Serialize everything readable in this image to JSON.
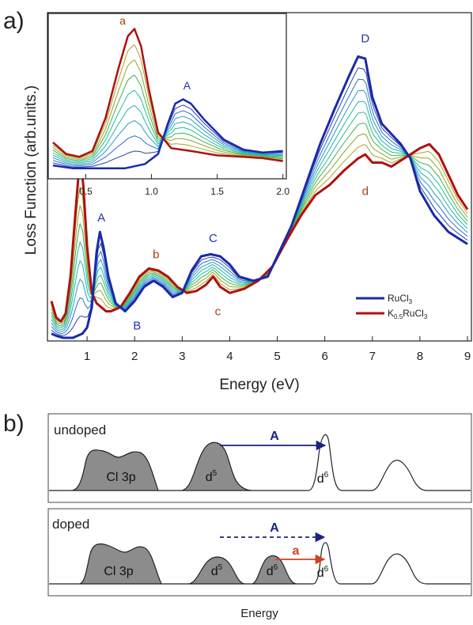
{
  "panel_labels": {
    "a": "a)",
    "b": "b)"
  },
  "colors": {
    "ru": "#1a2aa8",
    "k": "#b01010",
    "inter": [
      "#2c3fb0",
      "#2f6fc4",
      "#2a9ac8",
      "#1fb4ae",
      "#25bf86",
      "#3fae54",
      "#8fa628",
      "#a9a228"
    ],
    "label_ru": "#2233aa",
    "label_k": "#a04010",
    "arrow_blue": "#1a237e",
    "arrow_red": "#d04020",
    "fill_gray": "#8c8c8c"
  },
  "chart_data": [
    {
      "type": "line",
      "xlabel": "Energy  (eV)",
      "ylabel": "Loss Function (arb.units.)",
      "xlim": [
        0.2,
        9.05
      ],
      "xticks": [
        "1",
        "2",
        "3",
        "4",
        "5",
        "6",
        "7",
        "8",
        "9"
      ],
      "x_tick_values": [
        1,
        2,
        3,
        4,
        5,
        6,
        7,
        8,
        9
      ],
      "legend_position": "bottom-right",
      "series": [
        {
          "name": "RuCl₃",
          "legend_name": "RuCl",
          "legend_sub": "3",
          "role": "ru",
          "x": [
            0.25,
            0.35,
            0.5,
            0.7,
            0.9,
            1.0,
            1.1,
            1.2,
            1.27,
            1.35,
            1.45,
            1.6,
            1.8,
            2.0,
            2.2,
            2.4,
            2.6,
            2.8,
            3.0,
            3.2,
            3.4,
            3.6,
            3.8,
            4.0,
            4.2,
            4.5,
            4.8,
            5.0,
            5.3,
            5.6,
            5.9,
            6.2,
            6.5,
            6.7,
            6.85,
            7.0,
            7.2,
            7.4,
            7.6,
            7.8,
            8.0,
            8.3,
            8.6,
            9.0
          ],
          "y": [
            0.02,
            0.01,
            0.0,
            0.0,
            0.02,
            0.05,
            0.15,
            0.42,
            0.52,
            0.44,
            0.3,
            0.17,
            0.13,
            0.18,
            0.25,
            0.28,
            0.25,
            0.2,
            0.22,
            0.33,
            0.4,
            0.41,
            0.4,
            0.36,
            0.3,
            0.28,
            0.3,
            0.4,
            0.55,
            0.75,
            0.95,
            1.12,
            1.28,
            1.38,
            1.37,
            1.18,
            1.05,
            1.0,
            0.95,
            0.88,
            0.72,
            0.6,
            0.52,
            0.46
          ]
        },
        {
          "name": "K₀.₅RuCl₃",
          "legend_name": "K",
          "legend_sub": "0.5",
          "legend_name2": "RuCl",
          "legend_sub2": "3",
          "role": "k",
          "x": [
            0.25,
            0.35,
            0.45,
            0.55,
            0.65,
            0.75,
            0.82,
            0.87,
            0.92,
            1.0,
            1.1,
            1.2,
            1.3,
            1.4,
            1.5,
            1.7,
            1.9,
            2.1,
            2.3,
            2.5,
            2.7,
            2.9,
            3.1,
            3.3,
            3.5,
            3.65,
            3.8,
            4.0,
            4.3,
            4.6,
            4.9,
            5.2,
            5.5,
            5.8,
            6.1,
            6.4,
            6.7,
            6.85,
            7.0,
            7.2,
            7.4,
            7.6,
            7.8,
            8.0,
            8.2,
            8.4,
            8.6,
            8.8,
            9.0
          ],
          "y": [
            0.18,
            0.1,
            0.08,
            0.12,
            0.3,
            0.6,
            0.8,
            0.85,
            0.75,
            0.45,
            0.22,
            0.17,
            0.15,
            0.13,
            0.13,
            0.15,
            0.22,
            0.3,
            0.34,
            0.33,
            0.3,
            0.25,
            0.22,
            0.23,
            0.26,
            0.3,
            0.25,
            0.22,
            0.24,
            0.28,
            0.35,
            0.48,
            0.6,
            0.7,
            0.75,
            0.82,
            0.88,
            0.9,
            0.86,
            0.86,
            0.84,
            0.87,
            0.9,
            0.93,
            0.95,
            0.9,
            0.8,
            0.7,
            0.63
          ]
        }
      ],
      "annotations": [
        {
          "text": "a",
          "x": 0.85,
          "y": 0.9,
          "color": "k"
        },
        {
          "text": "A",
          "x": 1.3,
          "y": 0.57,
          "color": "ru"
        },
        {
          "text": "B",
          "x": 2.05,
          "y": 0.04,
          "color": "ru"
        },
        {
          "text": "b",
          "x": 2.45,
          "y": 0.39,
          "color": "k"
        },
        {
          "text": "C",
          "x": 3.65,
          "y": 0.47,
          "color": "ru"
        },
        {
          "text": "c",
          "x": 3.75,
          "y": 0.11,
          "color": "k"
        },
        {
          "text": "D",
          "x": 6.85,
          "y": 1.45,
          "color": "ru"
        },
        {
          "text": "d",
          "x": 6.85,
          "y": 0.7,
          "color": "k"
        }
      ]
    },
    {
      "type": "line",
      "inset": true,
      "xlim": [
        0.22,
        2.02
      ],
      "xticks": [
        "0.5",
        "1.0",
        "1.5",
        "2.0"
      ],
      "x_tick_values": [
        0.5,
        1.0,
        1.5,
        2.0
      ],
      "series": [
        {
          "name": "RuCl₃",
          "role": "ru",
          "x": [
            0.25,
            0.4,
            0.6,
            0.8,
            0.95,
            1.05,
            1.12,
            1.18,
            1.24,
            1.3,
            1.4,
            1.55,
            1.7,
            1.85,
            2.0
          ],
          "y": [
            0.02,
            0.0,
            0.0,
            0.0,
            0.03,
            0.1,
            0.3,
            0.45,
            0.48,
            0.45,
            0.34,
            0.2,
            0.13,
            0.11,
            0.12
          ]
        },
        {
          "name": "K₀.₅RuCl₃",
          "role": "k",
          "x": [
            0.25,
            0.35,
            0.45,
            0.55,
            0.65,
            0.75,
            0.82,
            0.87,
            0.92,
            0.98,
            1.05,
            1.15,
            1.3,
            1.5,
            1.7,
            1.85,
            2.0
          ],
          "y": [
            0.18,
            0.1,
            0.08,
            0.12,
            0.35,
            0.7,
            0.92,
            0.97,
            0.85,
            0.55,
            0.25,
            0.14,
            0.12,
            0.09,
            0.08,
            0.07,
            0.05
          ]
        }
      ],
      "annotations": [
        {
          "text": "a",
          "x": 0.78,
          "y": 1.0,
          "color": "k"
        },
        {
          "text": "A",
          "x": 1.27,
          "y": 0.55,
          "color": "ru"
        }
      ]
    }
  ],
  "schematic": {
    "xlabel": "Energy",
    "undoped": {
      "label": "undoped",
      "texts": [
        {
          "text": "Cl 3p"
        },
        {
          "text": "d",
          "sup": "5"
        },
        {
          "text": "d",
          "sup": "6"
        }
      ],
      "arrow": {
        "label": "A",
        "style": "solid",
        "color": "arrow_blue"
      }
    },
    "doped": {
      "label": "doped",
      "texts": [
        {
          "text": "Cl 3p"
        },
        {
          "text": "d",
          "sup": "5"
        },
        {
          "text": "d",
          "sup": "6"
        },
        {
          "text": "d",
          "sup": "6"
        }
      ],
      "arrows": [
        {
          "label": "A",
          "style": "dashed",
          "color": "arrow_blue"
        },
        {
          "label": "a",
          "style": "solid",
          "color": "arrow_red"
        }
      ]
    }
  }
}
